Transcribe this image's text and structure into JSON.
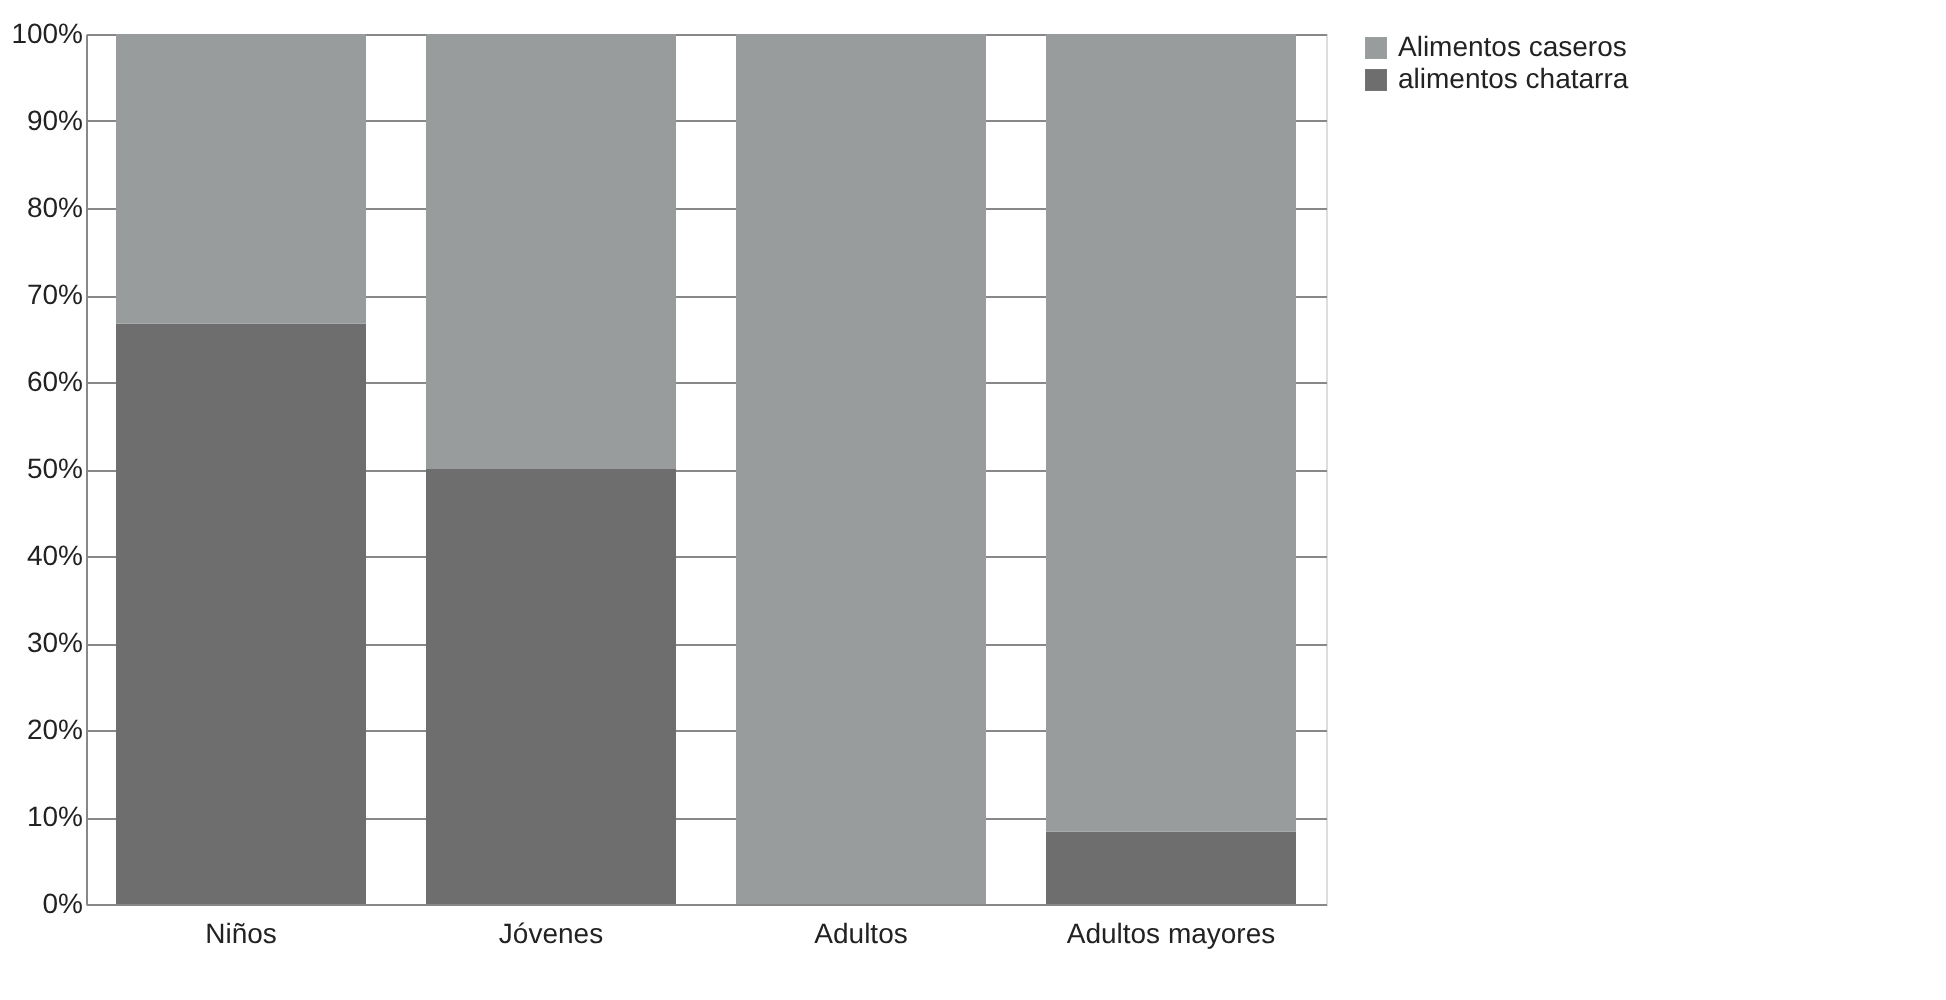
{
  "chart_data": {
    "type": "bar",
    "stacked": true,
    "categories": [
      "Niños",
      "Jóvenes",
      "Adultos",
      "Adultos mayores"
    ],
    "series": [
      {
        "name": "alimentos chatarra",
        "color": "#6e6e6e",
        "values": [
          66.7,
          50,
          0,
          8.3
        ]
      },
      {
        "name": "Alimentos caseros",
        "color": "#999c9c",
        "values": [
          33.3,
          50,
          100,
          91.7
        ]
      }
    ],
    "ylim": [
      0,
      100
    ],
    "yticks": [
      {
        "value": 0,
        "label": "0%"
      },
      {
        "value": 10,
        "label": "10%"
      },
      {
        "value": 20,
        "label": "20%"
      },
      {
        "value": 30,
        "label": "30%"
      },
      {
        "value": 40,
        "label": "40%"
      },
      {
        "value": 50,
        "label": "50%"
      },
      {
        "value": 60,
        "label": "60%"
      },
      {
        "value": 70,
        "label": "70%"
      },
      {
        "value": 80,
        "label": "80%"
      },
      {
        "value": 90,
        "label": "90%"
      },
      {
        "value": 100,
        "label": "100%"
      }
    ],
    "grid": "y",
    "legend": "right"
  }
}
